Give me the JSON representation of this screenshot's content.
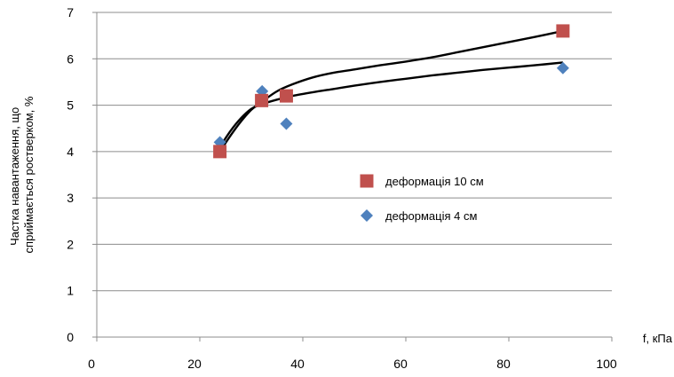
{
  "chart_data": {
    "type": "scatter",
    "xlabel": "f, кПа",
    "ylabel": [
      "Частка навантаження, що",
      "сприймається ростверком, %"
    ],
    "xlim": [
      0,
      100
    ],
    "ylim": [
      0,
      7
    ],
    "xticks": [
      0,
      20,
      40,
      60,
      80,
      100
    ],
    "yticks": [
      0,
      1,
      2,
      3,
      4,
      5,
      6,
      7
    ],
    "grid": "horizontal",
    "legend_position": "right-center",
    "series": [
      {
        "name": "деформація 10 см",
        "marker": "square",
        "color": "#c0504d",
        "points": [
          [
            23.9,
            4.0
          ],
          [
            32.0,
            5.1
          ],
          [
            36.8,
            5.2
          ],
          [
            90.5,
            6.6
          ]
        ],
        "trend": [
          [
            23.9,
            4.0
          ],
          [
            26,
            4.35
          ],
          [
            28,
            4.65
          ],
          [
            30,
            4.9
          ],
          [
            32,
            5.07
          ],
          [
            35,
            5.3
          ],
          [
            38,
            5.45
          ],
          [
            42,
            5.6
          ],
          [
            46,
            5.7
          ],
          [
            50,
            5.77
          ],
          [
            55,
            5.86
          ],
          [
            60,
            5.94
          ],
          [
            65,
            6.03
          ],
          [
            70,
            6.14
          ],
          [
            75,
            6.25
          ],
          [
            80,
            6.36
          ],
          [
            85,
            6.47
          ],
          [
            90.5,
            6.6
          ]
        ]
      },
      {
        "name": "деформація 4 см",
        "marker": "diamond",
        "color": "#4f81bd",
        "points": [
          [
            23.9,
            4.2
          ],
          [
            32.1,
            5.3
          ],
          [
            36.8,
            4.6
          ],
          [
            90.5,
            5.8
          ]
        ],
        "trend": [
          [
            23.9,
            4.1
          ],
          [
            26,
            4.45
          ],
          [
            28,
            4.72
          ],
          [
            30,
            4.92
          ],
          [
            32,
            5.02
          ],
          [
            35,
            5.12
          ],
          [
            38,
            5.2
          ],
          [
            42,
            5.28
          ],
          [
            46,
            5.35
          ],
          [
            50,
            5.42
          ],
          [
            55,
            5.5
          ],
          [
            60,
            5.57
          ],
          [
            65,
            5.64
          ],
          [
            70,
            5.7
          ],
          [
            75,
            5.76
          ],
          [
            80,
            5.81
          ],
          [
            85,
            5.86
          ],
          [
            90.5,
            5.92
          ]
        ]
      }
    ]
  }
}
